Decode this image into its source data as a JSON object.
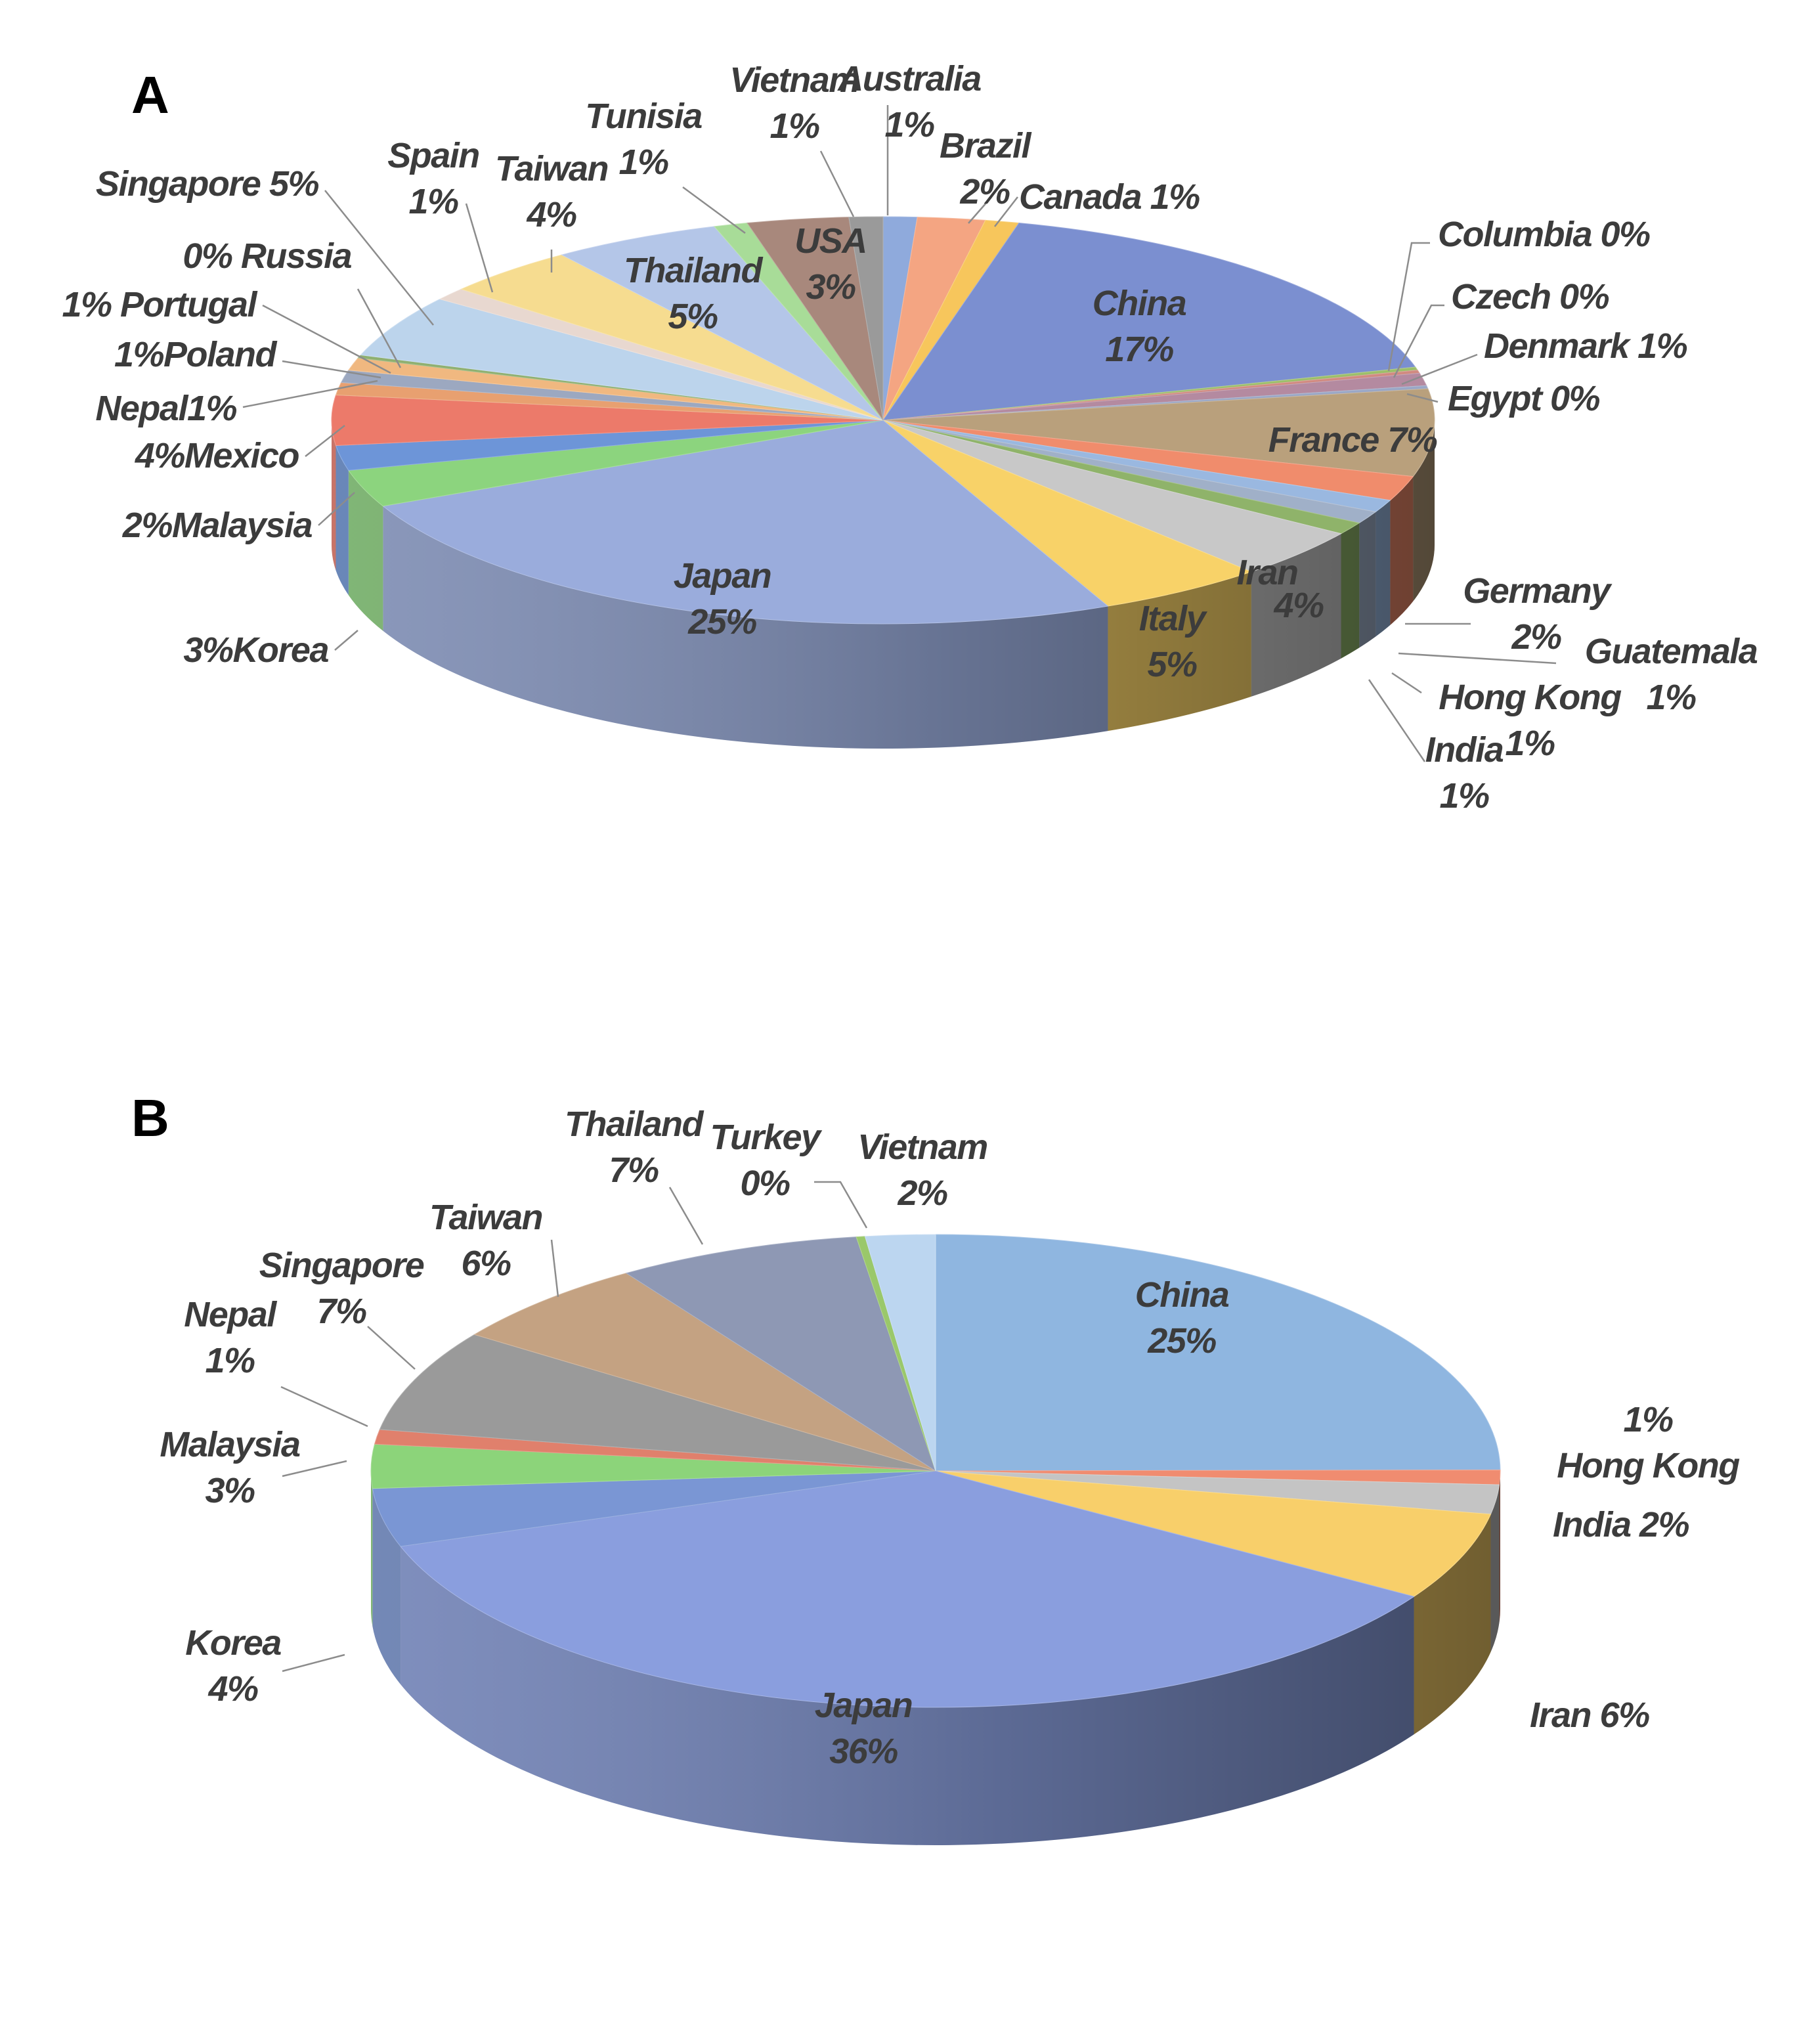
{
  "chart_data": [
    {
      "type": "pie",
      "panel": "A",
      "title": "",
      "legend": "none",
      "labels": [
        "Australia",
        "Brazil",
        "Canada",
        "China",
        "Columbia",
        "Czech",
        "Denmark",
        "Egypt",
        "France",
        "Germany",
        "Guatemala",
        "Hong Kong",
        "India",
        "Iran",
        "Italy",
        "Japan",
        "Korea",
        "Malaysia",
        "Mexico",
        "Nepal",
        "Poland",
        "Portugal",
        "Russia",
        "Singapore",
        "Spain",
        "Taiwan",
        "Thailand",
        "Tunisia",
        "USA",
        "Vietnam"
      ],
      "values": [
        1,
        2,
        1,
        17,
        0,
        0,
        1,
        0,
        7,
        2,
        1,
        1,
        1,
        4,
        5,
        25,
        3,
        2,
        4,
        1,
        1,
        1,
        0,
        5,
        1,
        4,
        5,
        1,
        3,
        1
      ],
      "value_labels": [
        "1%",
        "2%",
        "1%",
        "17%",
        "0%",
        "0%",
        "1%",
        "0%",
        "7%",
        "2%",
        "1%",
        "1%",
        "1%",
        "4%",
        "5%",
        "25%",
        "3%",
        "2%",
        "4%",
        "1%",
        "1%",
        "1%",
        "0%",
        "5%",
        "1%",
        "4%",
        "5%",
        "1%",
        "3%",
        "1%"
      ],
      "colors": [
        "#8faadc",
        "#f4a582",
        "#f7c65c",
        "#7b8fd0",
        "#9cbf6a",
        "#d18a80",
        "#b48aa0",
        "#9aa7c6",
        "#b9a07c",
        "#f08c6c",
        "#9ab8e0",
        "#a0b0c8",
        "#8fb36a",
        "#c8c8c8",
        "#f8d268",
        "#9aacdc",
        "#8cd47e",
        "#6d95d8",
        "#ec7a6a",
        "#e8a070",
        "#9ca8c0",
        "#f0b880",
        "#8fb070",
        "#bcd4ec",
        "#e8d8d0",
        "#f6dc90",
        "#b4c6e8",
        "#a8dc98",
        "#a8887c",
        "#9a9a9a"
      ]
    },
    {
      "type": "pie",
      "panel": "B",
      "title": "",
      "legend": "none",
      "labels": [
        "China",
        "Hong Kong",
        "India",
        "Iran",
        "Japan",
        "Korea",
        "Malaysia",
        "Nepal",
        "Singapore",
        "Taiwan",
        "Thailand",
        "Turkey",
        "Vietnam"
      ],
      "values": [
        25,
        1,
        2,
        6,
        36,
        4,
        3,
        1,
        7,
        6,
        7,
        0,
        2
      ],
      "value_labels": [
        "25%",
        "1%",
        "2%",
        "6%",
        "36%",
        "4%",
        "3%",
        "1%",
        "7%",
        "6%",
        "7%",
        "0%",
        "2%"
      ],
      "colors": [
        "#8fb6e0",
        "#f08c70",
        "#c4c4c4",
        "#f8cf6a",
        "#8a9ede",
        "#7a96d4",
        "#8cd47a",
        "#e0806c",
        "#9a9a9a",
        "#c4a282",
        "#8e98b4",
        "#9ac86a",
        "#bcd6f0"
      ]
    }
  ]
}
